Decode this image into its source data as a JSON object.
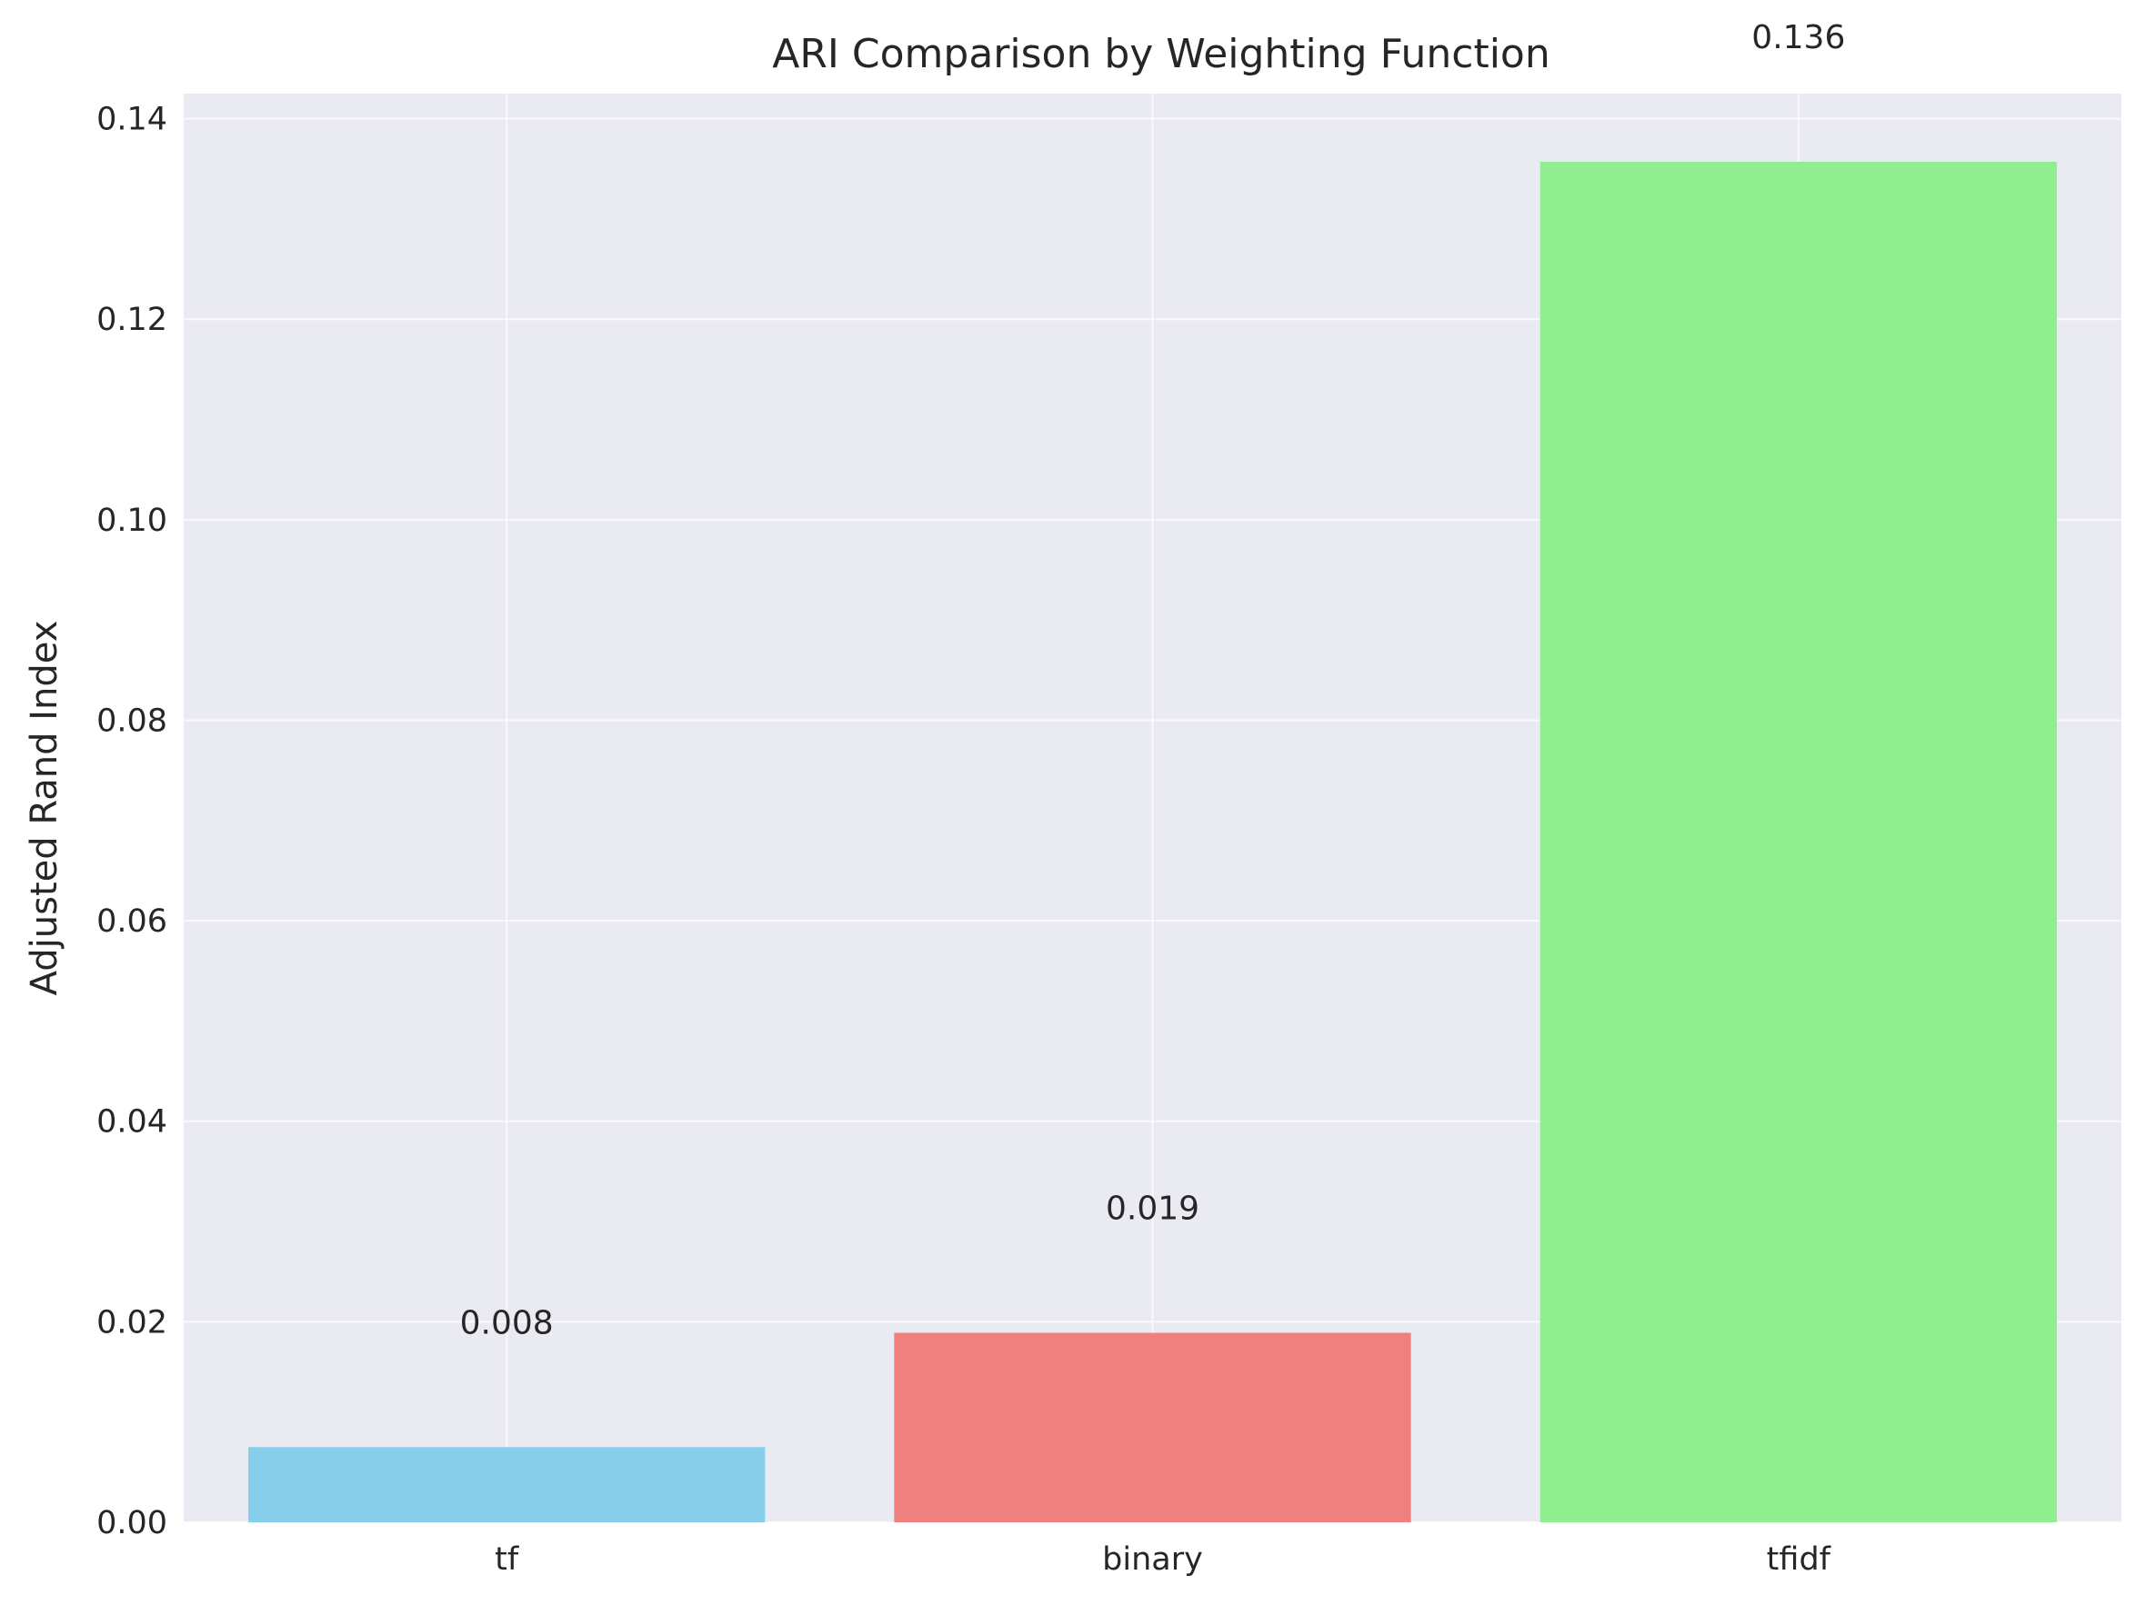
{
  "chart_data": {
    "type": "bar",
    "title": "ARI Comparison by Weighting Function",
    "xlabel": "",
    "ylabel": "Adjusted Rand Index",
    "categories": [
      "tf",
      "binary",
      "tfidf"
    ],
    "values": [
      0.0075,
      0.0189,
      0.1357
    ],
    "value_labels": [
      "0.008",
      "0.019",
      "0.136"
    ],
    "colors": [
      "#87ceeb",
      "#f08080",
      "#90ee90"
    ],
    "ylim": [
      0,
      0.1425
    ],
    "yticks": [
      0,
      0.02,
      0.04,
      0.06,
      0.08,
      0.1,
      0.12,
      0.14
    ],
    "ytick_labels": [
      "0.00",
      "0.02",
      "0.04",
      "0.06",
      "0.08",
      "0.10",
      "0.12",
      "0.14"
    ],
    "grid": true,
    "legend": "none",
    "background_color": "#eaeaf2",
    "grid_color": "#ffffff"
  }
}
